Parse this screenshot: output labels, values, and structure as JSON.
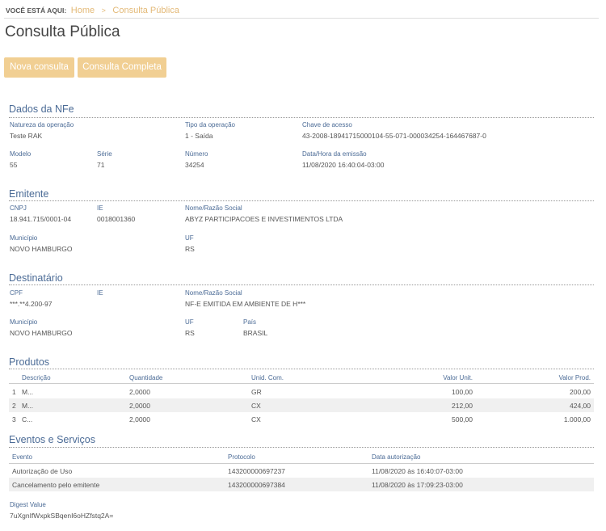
{
  "breadcrumb": {
    "label": "VOCÊ ESTÁ AQUI:",
    "home": "Home",
    "separator": ">",
    "current": "Consulta Pública"
  },
  "page_title": "Consulta Pública",
  "buttons": {
    "nova": "Nova consulta",
    "completa": "Consulta Completa"
  },
  "colors": {
    "accent": "#f1cf93",
    "heading": "#4b6b96"
  },
  "dados": {
    "heading": "Dados da NFe",
    "natureza": {
      "label": "Natureza da operação",
      "value": "Teste RAK"
    },
    "tipo": {
      "label": "Tipo da operação",
      "value": "1 - Saída"
    },
    "chave": {
      "label": "Chave de acesso",
      "value": "43-2008-18941715000104-55-071-000034254-164467687-0"
    },
    "modelo": {
      "label": "Modelo",
      "value": "55"
    },
    "serie": {
      "label": "Série",
      "value": "71"
    },
    "numero": {
      "label": "Número",
      "value": "34254"
    },
    "data": {
      "label": "Data/Hora da emissão",
      "value": "11/08/2020 16:40:04-03:00"
    }
  },
  "emitente": {
    "heading": "Emitente",
    "cnpj": {
      "label": "CNPJ",
      "value": "18.941.715/0001-04"
    },
    "ie": {
      "label": "IE",
      "value": "0018001360"
    },
    "nome": {
      "label": "Nome/Razão Social",
      "value": "ABYZ PARTICIPACOES E INVESTIMENTOS LTDA"
    },
    "municipio": {
      "label": "Município",
      "value": "NOVO HAMBURGO"
    },
    "uf": {
      "label": "UF",
      "value": "RS"
    }
  },
  "destinatario": {
    "heading": "Destinatário",
    "cpf": {
      "label": "CPF",
      "value": "***.**4.200-97"
    },
    "ie": {
      "label": "IE",
      "value": ""
    },
    "nome": {
      "label": "Nome/Razão Social",
      "value": "NF-E EMITIDA EM AMBIENTE DE H***"
    },
    "municipio": {
      "label": "Município",
      "value": "NOVO HAMBURGO"
    },
    "uf": {
      "label": "UF",
      "value": "RS"
    },
    "pais": {
      "label": "País",
      "value": "BRASIL"
    }
  },
  "produtos": {
    "heading": "Produtos",
    "columns": [
      "Descrição",
      "Quantidade",
      "Unid. Com.",
      "Valor Unit.",
      "Valor Prod."
    ],
    "rows": [
      {
        "n": "1",
        "desc": "M...",
        "qtd": "2,0000",
        "unid": "GR",
        "unit": "100,00",
        "prod": "200,00"
      },
      {
        "n": "2",
        "desc": "M...",
        "qtd": "2,0000",
        "unid": "CX",
        "unit": "212,00",
        "prod": "424,00"
      },
      {
        "n": "3",
        "desc": "C...",
        "qtd": "2,0000",
        "unid": "CX",
        "unit": "500,00",
        "prod": "1.000,00"
      }
    ]
  },
  "eventos": {
    "heading": "Eventos e Serviços",
    "columns": [
      "Evento",
      "Protocolo",
      "Data autorização"
    ],
    "rows": [
      {
        "evento": "Autorização de Uso",
        "protocolo": "143200000697237",
        "data": "11/08/2020 às 16:40:07-03:00"
      },
      {
        "evento": "Cancelamento pelo emitente",
        "protocolo": "143200000697384",
        "data": "11/08/2020 às 17:09:23-03:00"
      }
    ]
  },
  "digest": {
    "label": "Digest Value",
    "value": "7uXgnIfWxpkSBqenI6oHZfstq2A="
  }
}
